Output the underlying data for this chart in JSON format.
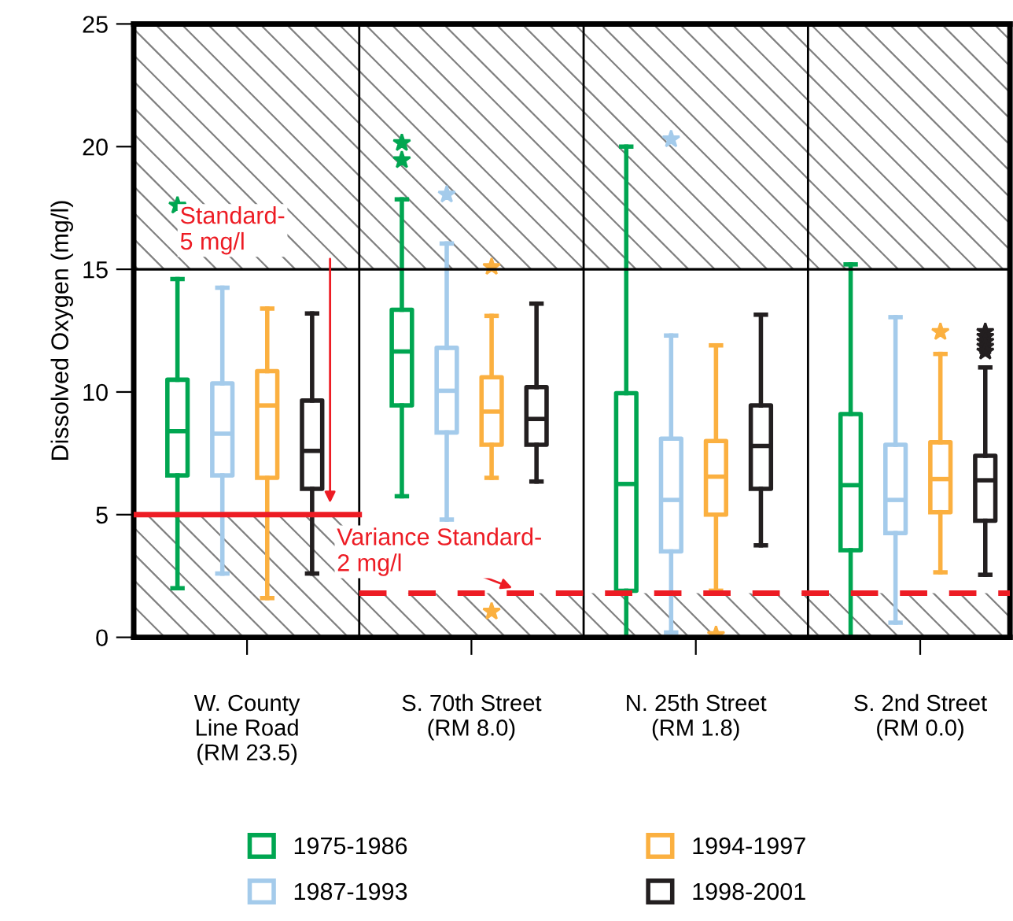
{
  "chart_data": {
    "type": "box",
    "ylabel": "Dissolved Oxygen (mg/l)",
    "categories": [
      "W. County\nLine Road\n(RM 23.5)",
      "S. 70th Street\n(RM 8.0)",
      "N. 25th Street\n(RM 1.8)",
      "S. 2nd Street\n(RM 0.0)"
    ],
    "ylim": [
      0,
      25
    ],
    "yticks": [
      0,
      5,
      10,
      15,
      20,
      25
    ],
    "grid": false,
    "legend": "bottom",
    "marker": "star",
    "series": [
      {
        "name": "1975-1986",
        "color": "#00a651",
        "boxes": [
          {
            "low": 2.0,
            "q1": 6.6,
            "median": 8.4,
            "q3": 10.5,
            "high": 14.6,
            "outliers": [
              17.6
            ]
          },
          {
            "low": 5.75,
            "q1": 9.45,
            "median": 11.65,
            "q3": 13.35,
            "high": 17.85,
            "outliers": [
              20.15,
              19.45
            ]
          },
          {
            "low": 0,
            "q1": 1.9,
            "median": 6.25,
            "q3": 9.95,
            "high": 20.0
          },
          {
            "low": 0,
            "q1": 3.55,
            "median": 6.2,
            "q3": 9.1,
            "high": 15.2
          }
        ]
      },
      {
        "name": "1987-1993",
        "color": "#a4cbeb",
        "boxes": [
          {
            "low": 2.6,
            "q1": 6.6,
            "median": 8.3,
            "q3": 10.35,
            "high": 14.25
          },
          {
            "low": 4.8,
            "q1": 8.35,
            "median": 10.05,
            "q3": 11.8,
            "high": 16.05,
            "outliers": [
              18.05
            ]
          },
          {
            "low": 0.2,
            "q1": 3.5,
            "median": 5.6,
            "q3": 8.1,
            "high": 12.3,
            "outliers": [
              20.3
            ]
          },
          {
            "low": 0.6,
            "q1": 4.25,
            "median": 5.6,
            "q3": 7.85,
            "high": 13.05
          }
        ]
      },
      {
        "name": "1994-1997",
        "color": "#fbb040",
        "boxes": [
          {
            "low": 1.6,
            "q1": 6.5,
            "median": 9.45,
            "q3": 10.85,
            "high": 13.4
          },
          {
            "low": 6.5,
            "q1": 7.85,
            "median": 9.2,
            "q3": 10.6,
            "high": 13.1,
            "outliers": [
              15.1,
              1.05
            ]
          },
          {
            "low": 1.9,
            "q1": 5.0,
            "median": 6.55,
            "q3": 8.0,
            "high": 11.9,
            "outliers": [
              0.1
            ]
          },
          {
            "low": 2.65,
            "q1": 5.1,
            "median": 6.45,
            "q3": 7.95,
            "high": 11.55,
            "outliers": [
              12.45
            ]
          }
        ]
      },
      {
        "name": "1998-2001",
        "color": "#231f20",
        "boxes": [
          {
            "low": 2.6,
            "q1": 6.05,
            "median": 7.6,
            "q3": 9.65,
            "high": 13.2
          },
          {
            "low": 6.35,
            "q1": 7.85,
            "median": 8.9,
            "q3": 10.2,
            "high": 13.6
          },
          {
            "low": 3.75,
            "q1": 6.05,
            "median": 7.8,
            "q3": 9.45,
            "high": 13.15
          },
          {
            "low": 2.55,
            "q1": 4.75,
            "median": 6.4,
            "q3": 7.4,
            "high": 11.0,
            "outliers": [
              12.45,
              12.25,
              12.05,
              11.85,
              11.65
            ]
          }
        ]
      }
    ],
    "bands": [
      {
        "axis": "y",
        "from": 15,
        "to": 25,
        "color": "#808080"
      },
      {
        "axis": "y",
        "from": 0,
        "to": 5,
        "color": "#808080"
      },
      {
        "axis": "y",
        "from": 0,
        "to": 1.8,
        "color": "#808080"
      }
    ],
    "ref_lines": [
      {
        "axis": "y",
        "value": 15,
        "color": "#000000",
        "line_style": "solid"
      },
      {
        "axis": "y",
        "value": 5,
        "color": "#ed1c24",
        "line_style": "solid"
      },
      {
        "axis": "y",
        "value": 1.8,
        "color": "#ed1c24",
        "line_style": "dashed"
      }
    ],
    "annotations": [
      "Standard-\n5 mg/l",
      "Variance Standard-\n2 mg/l"
    ]
  }
}
